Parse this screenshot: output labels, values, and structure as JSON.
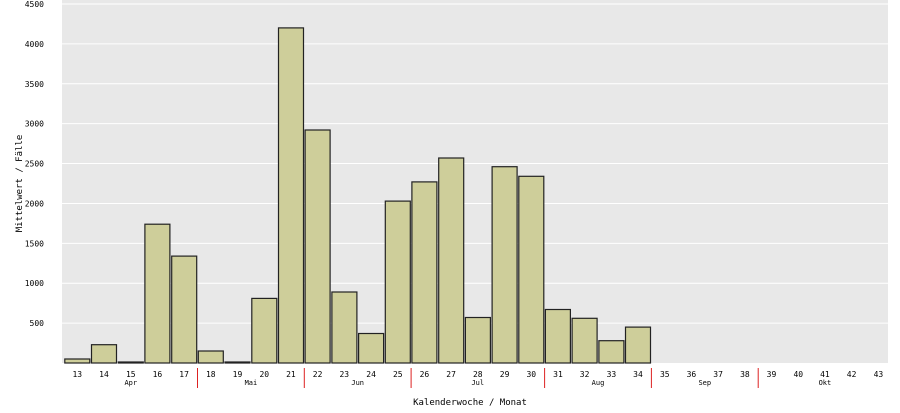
{
  "chart_data": {
    "type": "bar",
    "xlabel": "Kalenderwoche / Monat",
    "ylabel": "Mittelwert / Fälle",
    "ylim": [
      0,
      4500
    ],
    "yticks": [
      500,
      1000,
      1500,
      2000,
      2500,
      3000,
      3500,
      4000,
      4500
    ],
    "ytick_labels": [
      "500",
      "1000",
      "1500",
      "2000",
      "2500",
      "3000",
      "3500",
      "4000",
      "4500"
    ],
    "grid": true,
    "legend": "none",
    "categories": [
      "13",
      "14",
      "15",
      "16",
      "17",
      "18",
      "19",
      "20",
      "21",
      "22",
      "23",
      "24",
      "25",
      "26",
      "27",
      "28",
      "29",
      "30",
      "31",
      "32",
      "33",
      "34",
      "35",
      "36",
      "37",
      "38",
      "39",
      "40",
      "41",
      "42",
      "43"
    ],
    "values": [
      50,
      230,
      10,
      1740,
      1340,
      150,
      10,
      810,
      4200,
      2920,
      890,
      370,
      2030,
      2270,
      2570,
      570,
      2460,
      2340,
      670,
      560,
      280,
      450,
      null,
      null,
      null,
      null,
      null,
      null,
      null,
      null,
      null
    ],
    "highlighted_categories": [
      {
        "category": "35",
        "color": "#dd0000"
      },
      {
        "category": "36",
        "color": "#009900"
      }
    ],
    "months": [
      {
        "label": "Apr",
        "center_category": "15"
      },
      {
        "label": "Mai",
        "center_category": "19.5"
      },
      {
        "label": "Jun",
        "center_category": "23.5"
      },
      {
        "label": "Jul",
        "center_category": "28"
      },
      {
        "label": "Aug",
        "center_category": "32.5"
      },
      {
        "label": "Sep",
        "center_category": "36.5"
      },
      {
        "label": "Okt",
        "center_category": "41"
      }
    ],
    "month_boundaries_after": [
      "17",
      "21",
      "25",
      "30",
      "34",
      "38"
    ],
    "colors": {
      "plot_background": "#e8e8e8",
      "bar_fill": "#cece9a",
      "bar_stroke": "#222222",
      "gridline": "#ffffff",
      "month_boundary": "#dd2222"
    }
  }
}
